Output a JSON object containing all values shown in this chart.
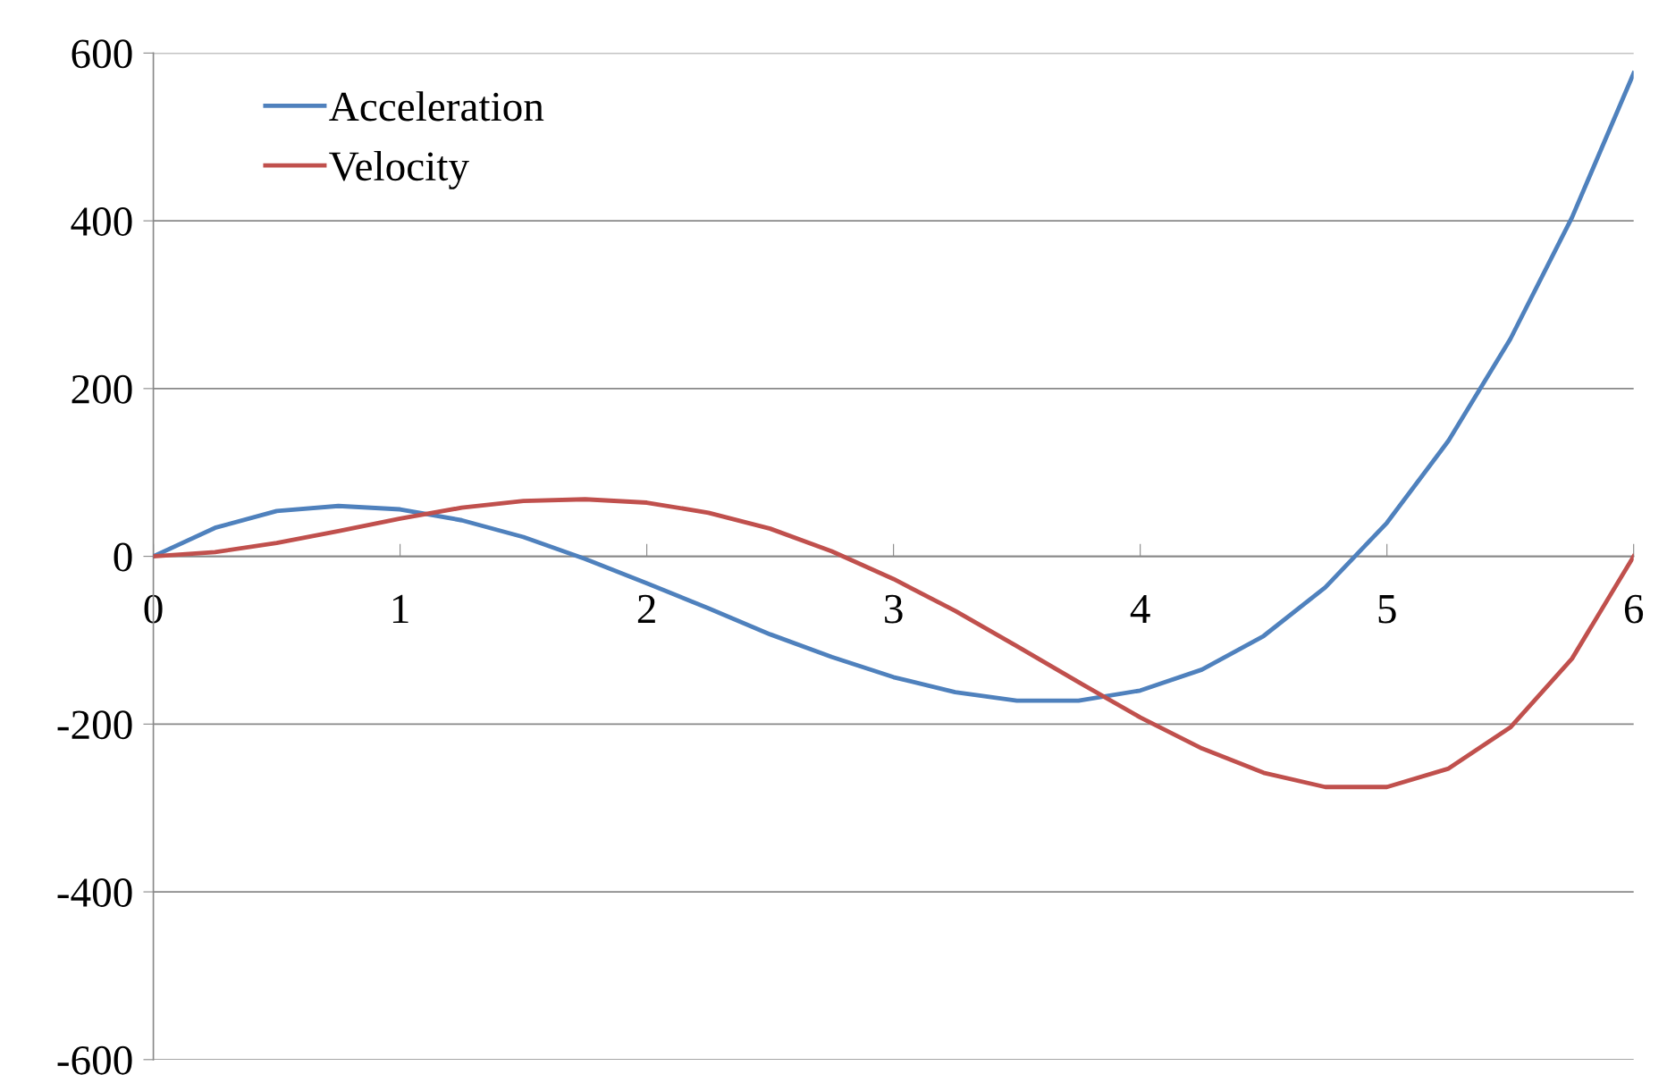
{
  "chart_data": {
    "type": "line",
    "x": [
      0,
      0.25,
      0.5,
      0.75,
      1,
      1.25,
      1.5,
      1.75,
      2,
      2.25,
      2.5,
      2.75,
      3,
      3.25,
      3.5,
      3.75,
      4,
      4.25,
      4.5,
      4.75,
      5,
      5.25,
      5.5,
      5.75,
      6
    ],
    "series": [
      {
        "name": "Acceleration",
        "color": "#4f81bd",
        "values": [
          0,
          34,
          54,
          60,
          56,
          43,
          23,
          -3,
          -32,
          -62,
          -93,
          -120,
          -144,
          -162,
          -172,
          -172,
          -160,
          -135,
          -95,
          -37,
          40,
          138,
          259,
          404,
          576
        ]
      },
      {
        "name": "Velocity",
        "color": "#c0504d",
        "values": [
          0,
          5,
          16,
          30,
          45,
          58,
          66,
          68,
          64,
          52,
          33,
          6,
          -27,
          -65,
          -107,
          -150,
          -192,
          -229,
          -258,
          -275,
          -275,
          -253,
          -204,
          -122,
          0
        ]
      }
    ],
    "xlim": [
      0,
      6
    ],
    "ylim": [
      -600,
      600
    ],
    "xticks": [
      0,
      1,
      2,
      3,
      4,
      5,
      6
    ],
    "yticks": [
      -600,
      -400,
      -200,
      0,
      200,
      400,
      600
    ],
    "grid": "y",
    "legend": "top left",
    "marker": "none",
    "line_style": "solid"
  }
}
